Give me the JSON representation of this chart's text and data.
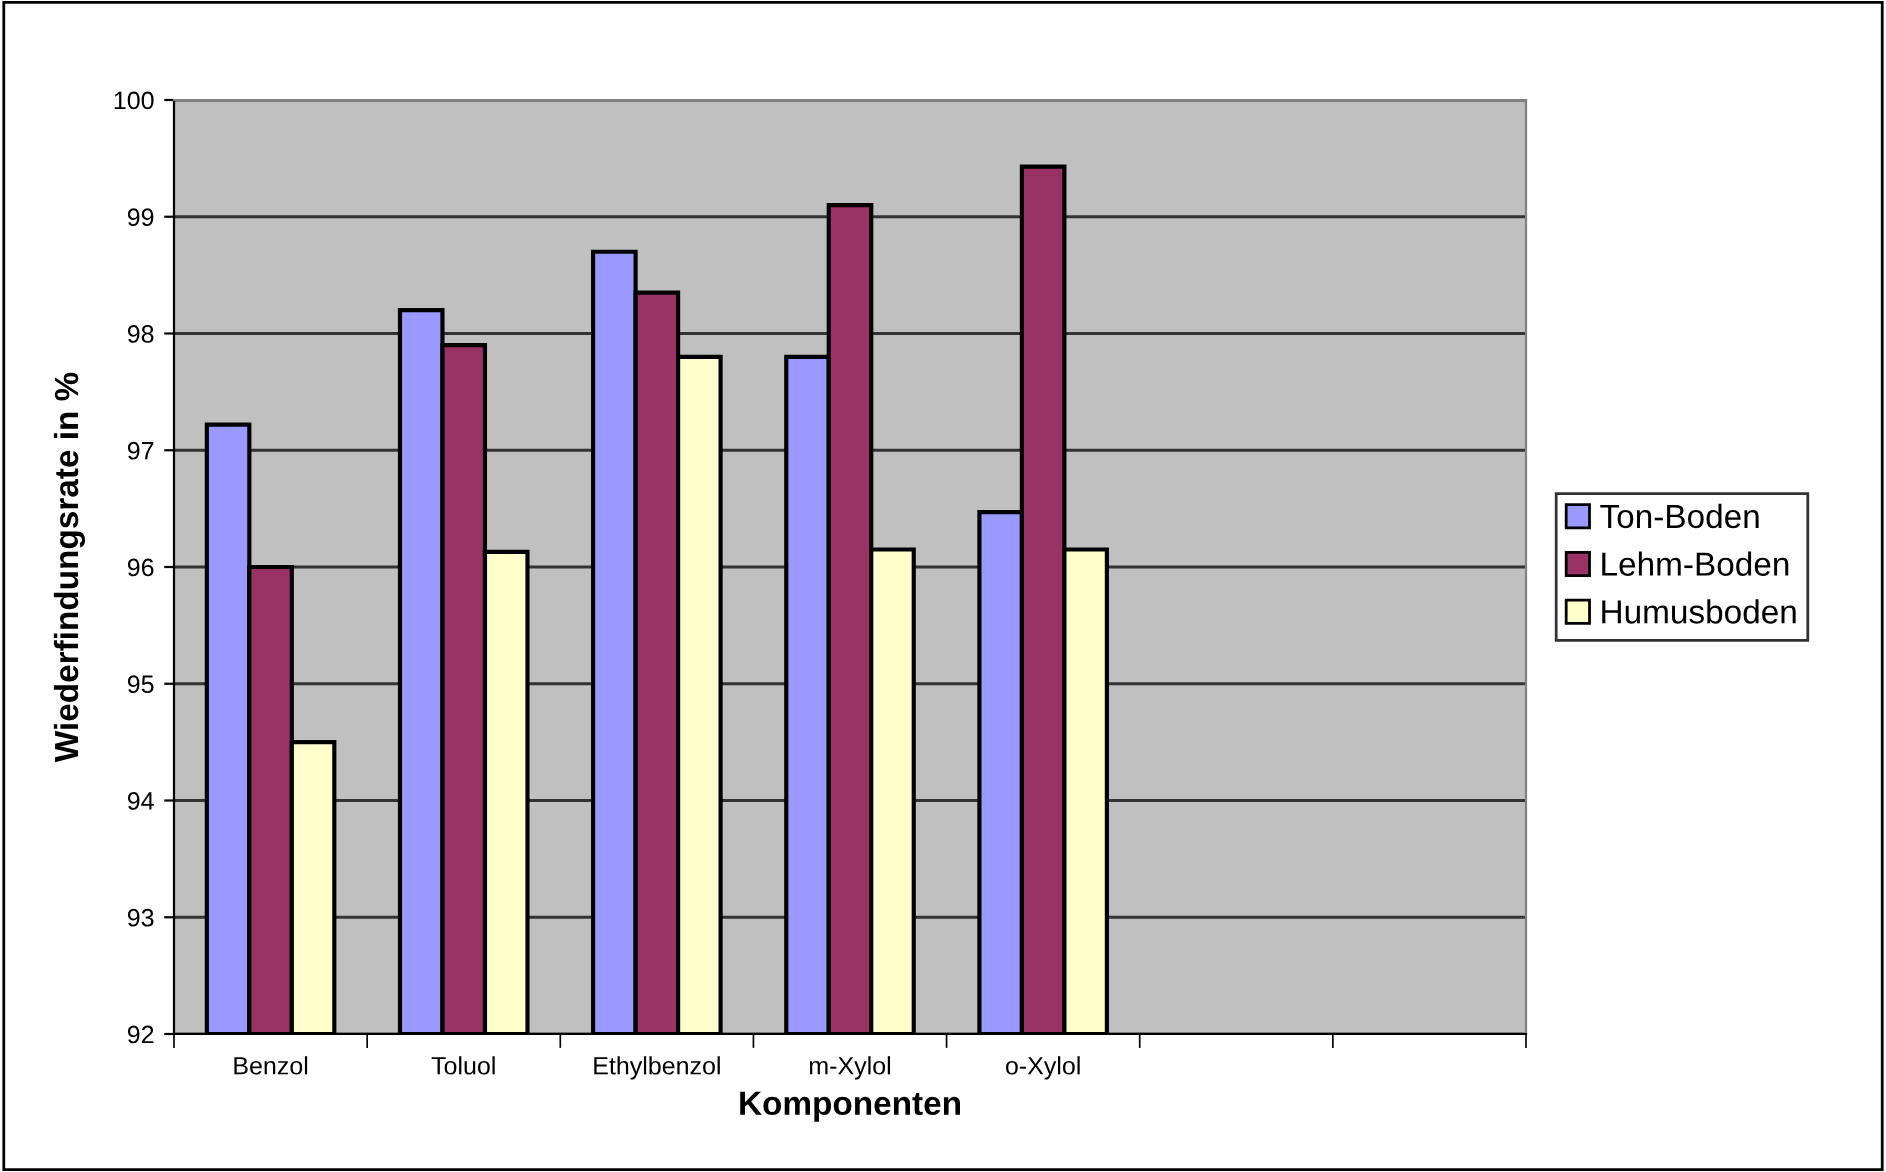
{
  "chart_data": {
    "type": "bar",
    "xlabel": "Komponenten",
    "ylabel": "Wiederfindungsrate in %",
    "categories": [
      "Benzol",
      "Toluol",
      "Ethylbenzol",
      "m-Xylol",
      "o-Xylol",
      null,
      null
    ],
    "series": [
      {
        "name": "Ton-Boden",
        "color": "#9999ff",
        "values": [
          97.22,
          98.2,
          98.7,
          97.8,
          96.47,
          null,
          null
        ]
      },
      {
        "name": "Lehm-Boden",
        "color": "#993366",
        "values": [
          96.0,
          97.9,
          98.35,
          99.1,
          99.43,
          null,
          null
        ]
      },
      {
        "name": "Humusboden",
        "color": "#ffffcc",
        "values": [
          94.5,
          96.13,
          97.8,
          96.15,
          96.15,
          null,
          null
        ]
      }
    ],
    "ylim": [
      92,
      100
    ],
    "yticks": [
      92,
      93,
      94,
      95,
      96,
      97,
      98,
      99,
      100
    ],
    "grid": "y",
    "legend": "right"
  }
}
